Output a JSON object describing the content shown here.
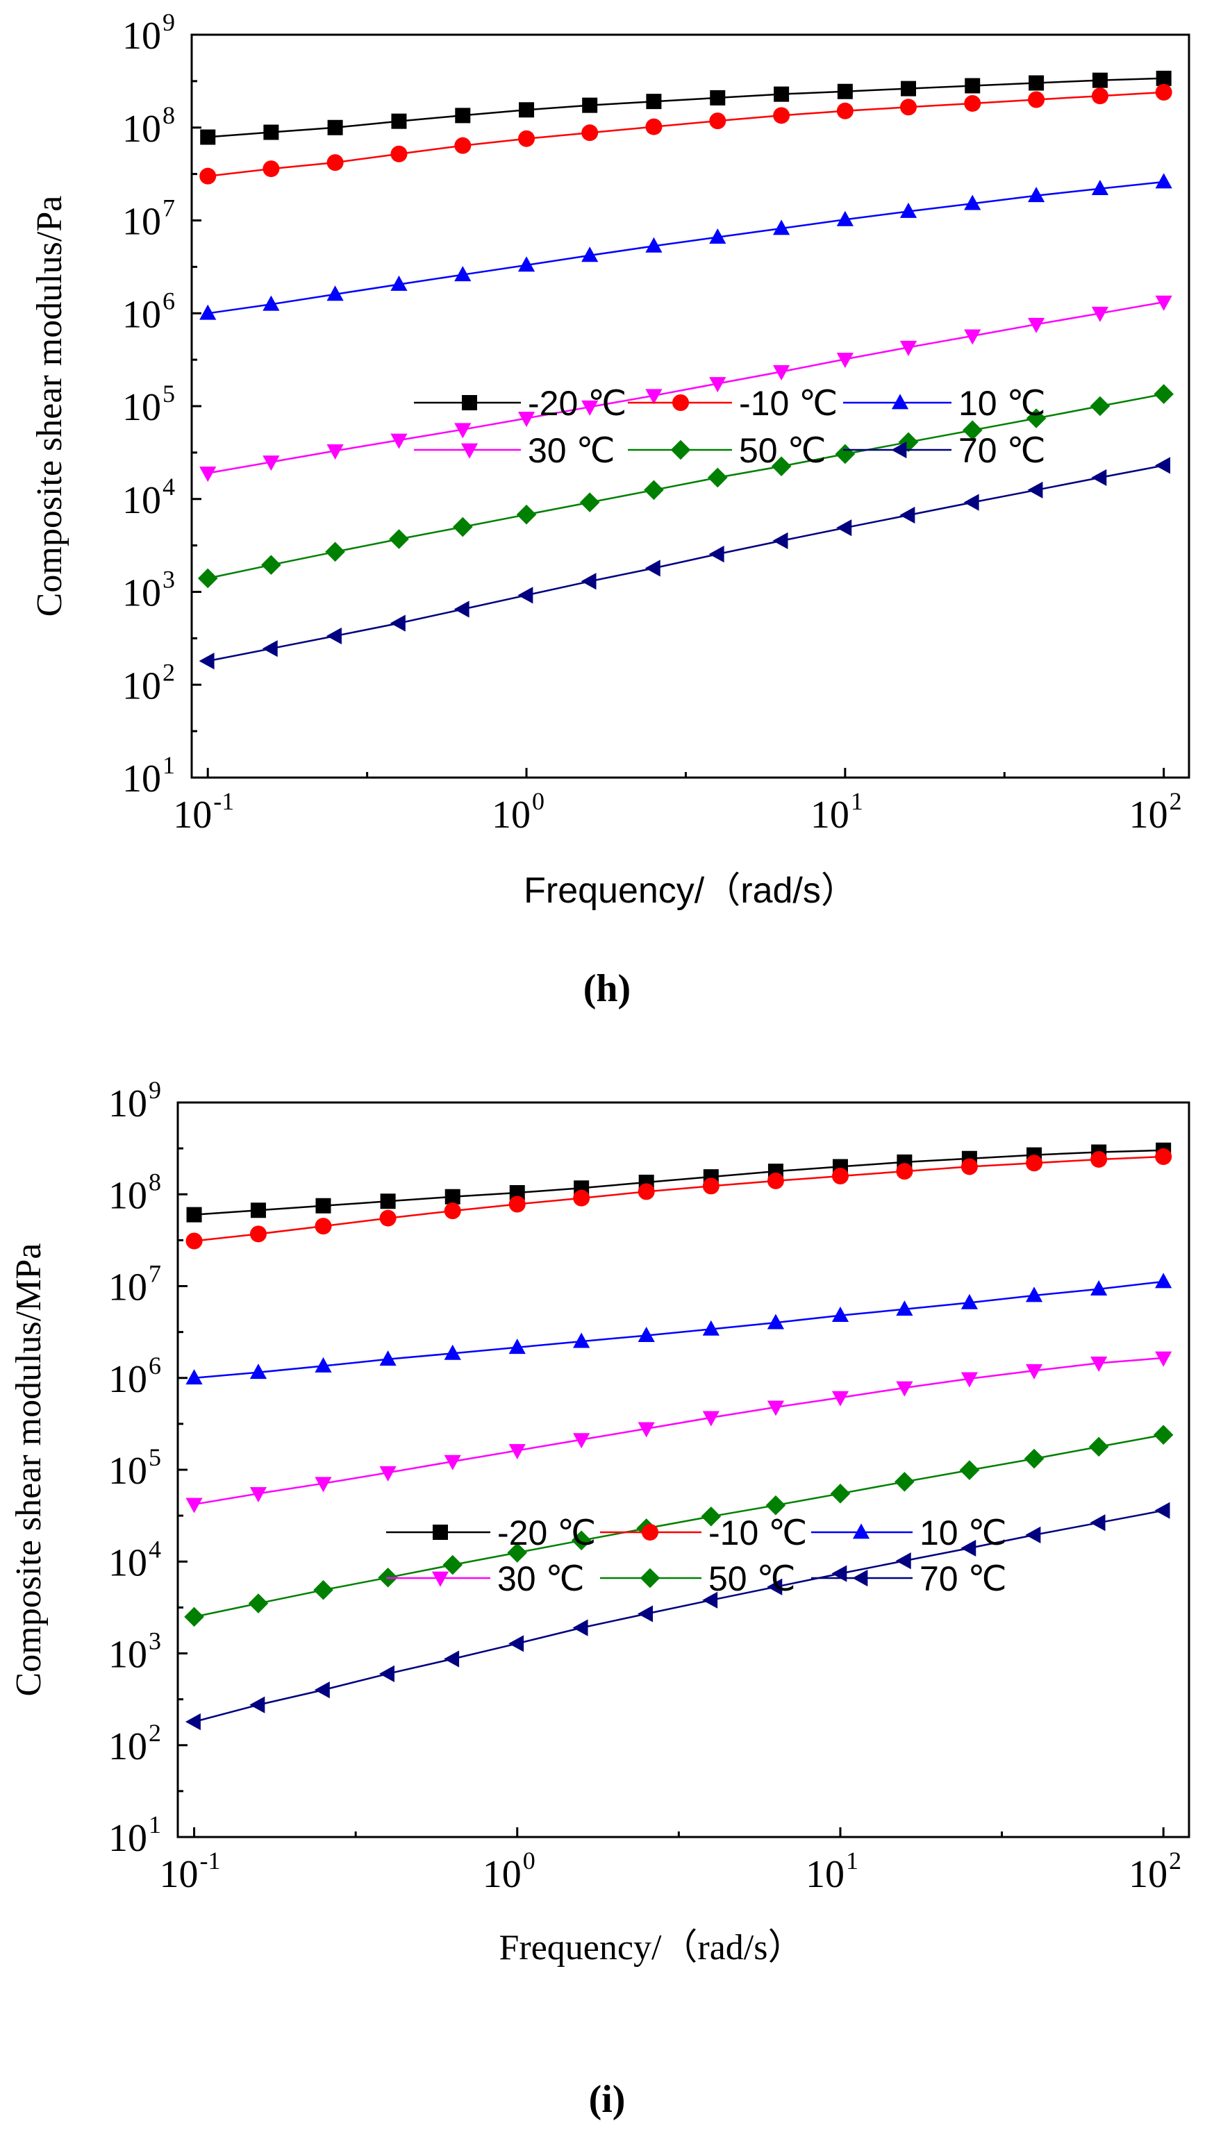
{
  "chart_data": [
    {
      "type": "line",
      "panel": "h",
      "caption": "(h)",
      "xlabel": "Frequency/（rad/s）",
      "ylabel": "Composite shear modulus/Pa",
      "xscale": "log",
      "yscale": "log",
      "xlim": [
        0.089,
        120
      ],
      "ylim": [
        10,
        1000000000
      ],
      "x_ticks": [
        {
          "m": "10",
          "e": "-1",
          "v": 0.1
        },
        {
          "m": "10",
          "e": "0",
          "v": 1
        },
        {
          "m": "10",
          "e": "1",
          "v": 10
        },
        {
          "m": "10",
          "e": "2",
          "v": 100
        }
      ],
      "y_ticks": [
        {
          "m": "10",
          "e": "1",
          "v": 10
        },
        {
          "m": "10",
          "e": "2",
          "v": 100
        },
        {
          "m": "10",
          "e": "3",
          "v": 1000
        },
        {
          "m": "10",
          "e": "4",
          "v": 10000
        },
        {
          "m": "10",
          "e": "5",
          "v": 100000
        },
        {
          "m": "10",
          "e": "6",
          "v": 1000000
        },
        {
          "m": "10",
          "e": "7",
          "v": 10000000
        },
        {
          "m": "10",
          "e": "8",
          "v": 100000000
        },
        {
          "m": "10",
          "e": "9",
          "v": 1000000000
        }
      ],
      "legend_position": "bottom-right",
      "x": [
        0.1,
        0.158,
        0.251,
        0.398,
        0.631,
        1,
        1.58,
        2.51,
        3.98,
        6.31,
        10,
        15.8,
        25.1,
        39.8,
        63.1,
        100
      ],
      "series": [
        {
          "name": "-20 ℃",
          "color": "#000000",
          "marker": "square",
          "values": [
            79000000,
            89000000,
            100000000,
            117000000,
            135000000,
            155000000,
            174000000,
            191000000,
            209000000,
            229000000,
            245000000,
            263000000,
            282000000,
            302000000,
            323000000,
            339000000
          ]
        },
        {
          "name": "-10 ℃",
          "color": "#ff0000",
          "marker": "circle",
          "values": [
            30000000,
            36000000,
            42000000,
            52000000,
            64000000,
            76000000,
            88000000,
            102000000,
            118000000,
            135000000,
            151000000,
            166000000,
            182000000,
            200000000,
            219000000,
            240000000
          ]
        },
        {
          "name": "10 ℃",
          "color": "#0000ff",
          "marker": "triangle-up",
          "values": [
            1000000,
            1250000,
            1600000,
            2050000,
            2600000,
            3300000,
            4200000,
            5300000,
            6600000,
            8200000,
            10200000,
            12500000,
            15200000,
            18500000,
            22000000,
            26000000
          ]
        },
        {
          "name": "30 ℃",
          "color": "#ff00ff",
          "marker": "triangle-down",
          "values": [
            19000,
            25000,
            33000,
            43000,
            56000,
            74000,
            98000,
            130000,
            175000,
            235000,
            320000,
            430000,
            570000,
            760000,
            1000000,
            1320000
          ]
        },
        {
          "name": "50 ℃",
          "color": "#008000",
          "marker": "diamond",
          "values": [
            1400,
            1950,
            2700,
            3700,
            5000,
            6800,
            9200,
            12500,
            17000,
            22500,
            30500,
            41000,
            55000,
            74000,
            100000,
            135000
          ]
        },
        {
          "name": "70 ℃",
          "color": "#000080",
          "marker": "triangle-left",
          "values": [
            180,
            245,
            335,
            460,
            650,
            920,
            1300,
            1800,
            2550,
            3550,
            4900,
            6700,
            9200,
            12500,
            17000,
            23000
          ]
        }
      ]
    },
    {
      "type": "line",
      "panel": "i",
      "caption": "(i)",
      "xlabel": "Frequency/（rad/s）",
      "ylabel": "Composite shear modulus/MPa",
      "xscale": "log",
      "yscale": "log",
      "xlim": [
        0.089,
        120
      ],
      "ylim": [
        10,
        1000000000
      ],
      "x_ticks": [
        {
          "m": "10",
          "e": "-1",
          "v": 0.1
        },
        {
          "m": "10",
          "e": "0",
          "v": 1
        },
        {
          "m": "10",
          "e": "1",
          "v": 10
        },
        {
          "m": "10",
          "e": "2",
          "v": 100
        }
      ],
      "y_ticks": [
        {
          "m": "10",
          "e": "1",
          "v": 10
        },
        {
          "m": "10",
          "e": "2",
          "v": 100
        },
        {
          "m": "10",
          "e": "3",
          "v": 1000
        },
        {
          "m": "10",
          "e": "4",
          "v": 10000
        },
        {
          "m": "10",
          "e": "5",
          "v": 100000
        },
        {
          "m": "10",
          "e": "6",
          "v": 1000000
        },
        {
          "m": "10",
          "e": "7",
          "v": 10000000
        },
        {
          "m": "10",
          "e": "8",
          "v": 100000000
        },
        {
          "m": "10",
          "e": "9",
          "v": 1000000000
        }
      ],
      "legend_position": "bottom-right",
      "x": [
        0.1,
        0.158,
        0.251,
        0.398,
        0.631,
        1,
        1.58,
        2.51,
        3.98,
        6.31,
        10,
        15.8,
        25.1,
        39.8,
        63.1,
        100
      ],
      "series": [
        {
          "name": "-20 ℃",
          "color": "#000000",
          "marker": "square",
          "values": [
            60000000,
            67000000,
            75000000,
            84000000,
            94000000,
            104000000,
            117000000,
            135000000,
            155000000,
            178000000,
            200000000,
            224000000,
            245000000,
            268000000,
            288000000,
            302000000
          ]
        },
        {
          "name": "-10 ℃",
          "color": "#ff0000",
          "marker": "circle",
          "values": [
            31000000,
            37000000,
            45000000,
            55000000,
            66000000,
            78000000,
            91000000,
            107000000,
            123000000,
            140000000,
            158000000,
            178000000,
            200000000,
            219000000,
            240000000,
            257000000
          ]
        },
        {
          "name": "10 ℃",
          "color": "#0000ff",
          "marker": "triangle-up",
          "values": [
            1000000,
            1150000,
            1350000,
            1600000,
            1850000,
            2150000,
            2500000,
            2900000,
            3400000,
            4000000,
            4800000,
            5600000,
            6600000,
            7900000,
            9300000,
            11200000
          ]
        },
        {
          "name": "30 ℃",
          "color": "#ff00ff",
          "marker": "triangle-down",
          "values": [
            42000,
            55000,
            71000,
            93000,
            123000,
            162000,
            213000,
            280000,
            370000,
            480000,
            610000,
            780000,
            980000,
            1200000,
            1450000,
            1650000
          ]
        },
        {
          "name": "50 ℃",
          "color": "#008000",
          "marker": "diamond",
          "values": [
            2500,
            3500,
            4900,
            6700,
            9200,
            12500,
            17000,
            23000,
            31000,
            41000,
            55000,
            74000,
            99000,
            132000,
            178000,
            240000
          ]
        },
        {
          "name": "70 ℃",
          "color": "#000080",
          "marker": "triangle-left",
          "values": [
            180,
            275,
            400,
            600,
            870,
            1280,
            1900,
            2700,
            3800,
            5300,
            7400,
            10200,
            14000,
            19500,
            26500,
            36000
          ]
        }
      ]
    }
  ]
}
